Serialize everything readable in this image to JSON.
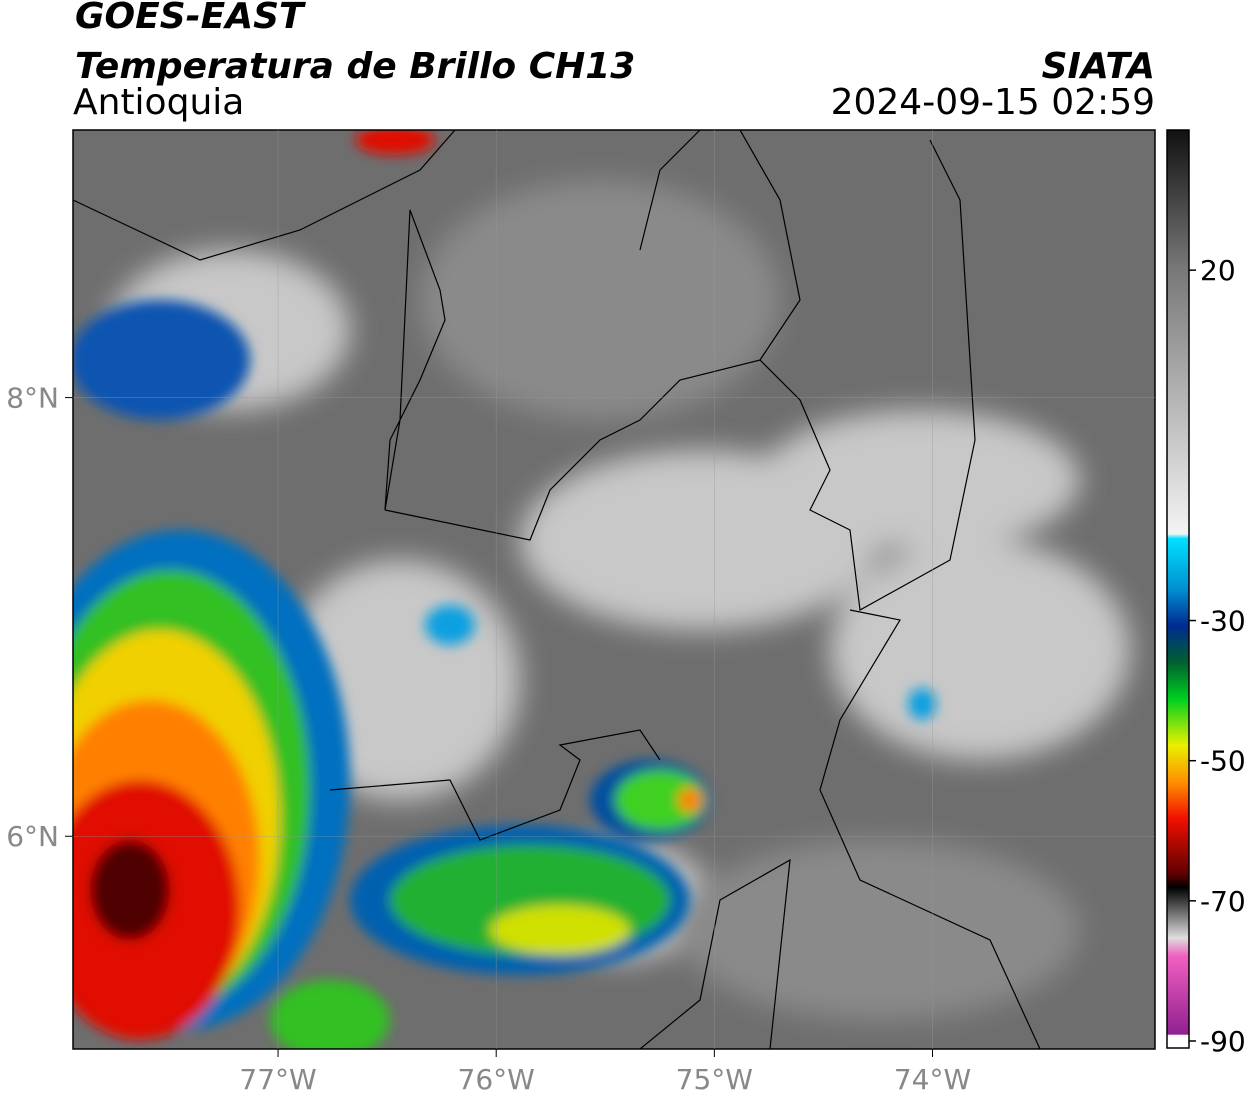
{
  "header": {
    "title": "GOES-EAST",
    "subtitle": "Temperatura de Brillo CH13",
    "region": "Antioquia",
    "source": "SIATA",
    "datetime": "2024-09-15 02:59"
  },
  "map": {
    "lonlim": [
      -77.94,
      -72.98
    ],
    "latlim": [
      5.03,
      9.22
    ],
    "lon_ticks": [
      {
        "value": -77,
        "label": "77°W"
      },
      {
        "value": -76,
        "label": "76°W"
      },
      {
        "value": -75,
        "label": "75°W"
      },
      {
        "value": -74,
        "label": "74°W"
      }
    ],
    "lat_ticks": [
      {
        "value": 8,
        "label": "8°N"
      },
      {
        "value": 6,
        "label": "6°N"
      }
    ]
  },
  "colorbar": {
    "lim": [
      -91,
      40
    ],
    "ticks": [
      20,
      -30,
      -50,
      -70,
      -90
    ]
  }
}
